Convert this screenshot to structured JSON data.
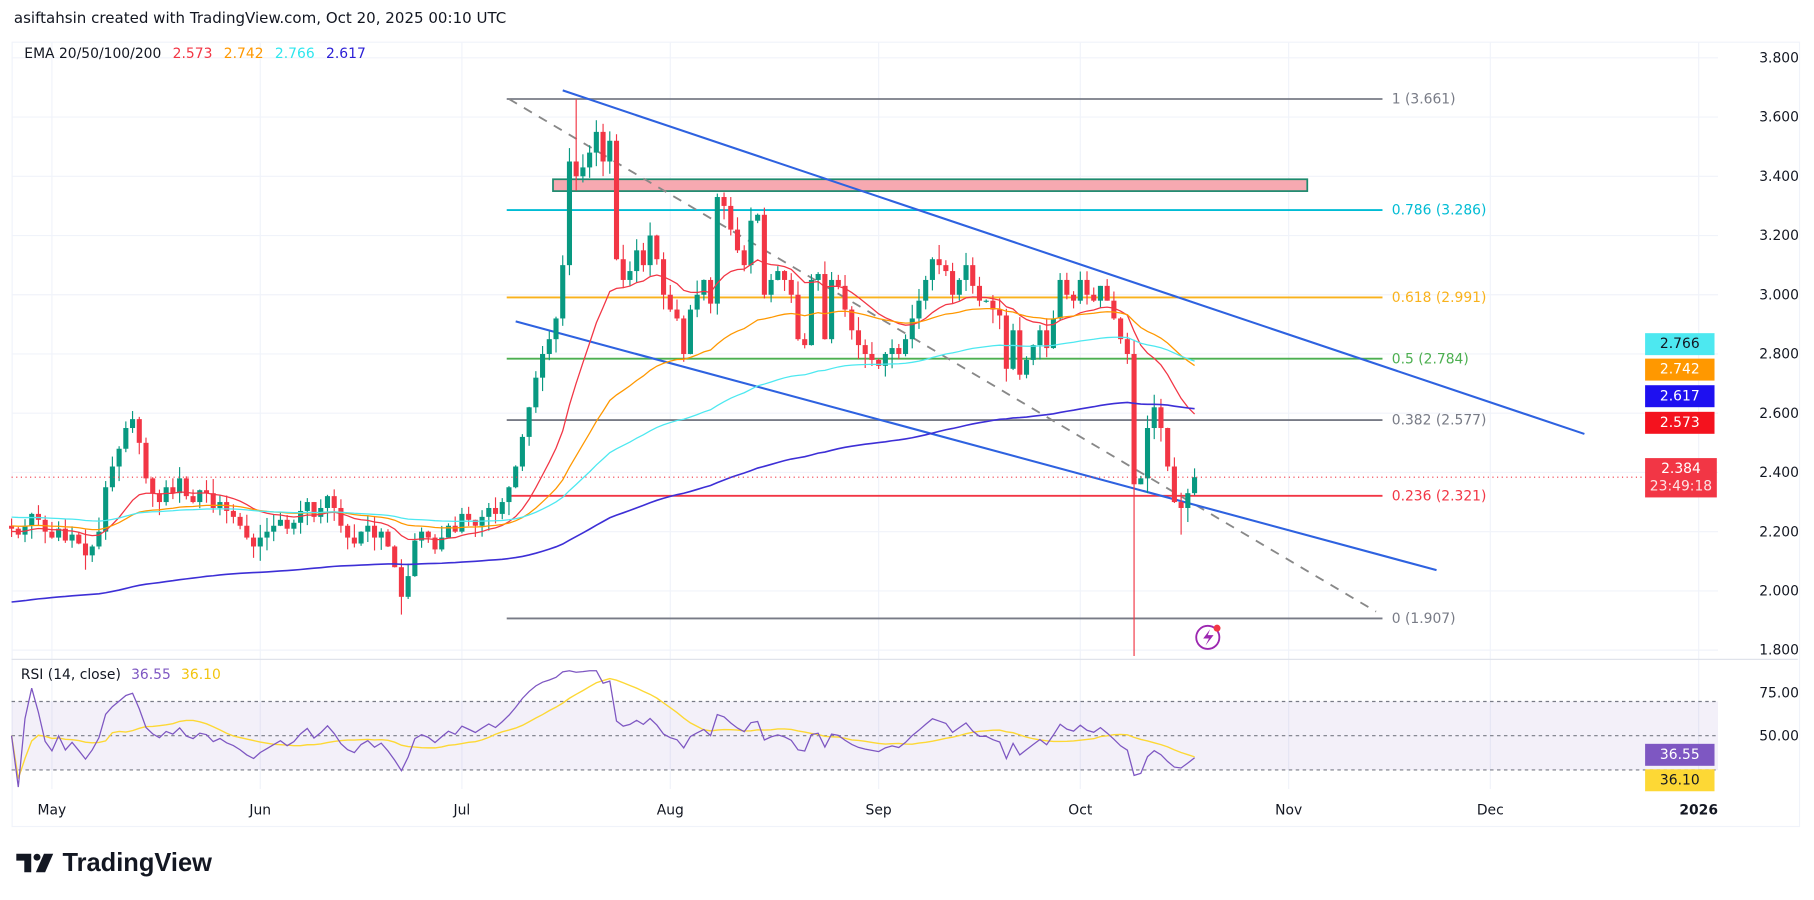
{
  "header": {
    "attribution": "asiftahsin created with TradingView.com, Oct 20, 2025 00:10 UTC"
  },
  "legend": {
    "name": "EMA 20/50/100/200",
    "ema20": "2.573",
    "ema50": "2.742",
    "ema100": "2.766",
    "ema200": "2.617"
  },
  "rsi_legend": {
    "name": "RSI (14, close)",
    "rsi": "36.55",
    "rsi_ma": "36.10"
  },
  "price_tags": {
    "ema100": "2.766",
    "ema50": "2.742",
    "ema200": "2.617",
    "ema20": "2.573",
    "last": "2.384",
    "countdown": "23:49:18",
    "rsi": "36.55",
    "rsi_ma": "36.10"
  },
  "footer": {
    "brand": "TradingView"
  },
  "colors": {
    "up": "#089981",
    "down": "#f23645",
    "ema20": "#f23645",
    "ema50": "#ff9800",
    "ema100": "#4de8f0",
    "ema200": "#3d2fd6",
    "channel": "#2e62e0",
    "rsi": "#7e57c2",
    "rsi_ma": "#fdd835"
  },
  "chart_data": {
    "type": "candlestick",
    "title": "EMA 20/50/100/200",
    "price_axis": {
      "min": 1.8,
      "max": 3.8,
      "ticks": [
        "3.800",
        "3.600",
        "3.400",
        "3.200",
        "3.000",
        "2.800",
        "2.600",
        "2.400",
        "2.200",
        "2.000",
        "1.800"
      ]
    },
    "time_axis": {
      "ticks": [
        "May",
        "Jun",
        "Jul",
        "Aug",
        "Sep",
        "Oct",
        "Nov",
        "Dec",
        "2026"
      ]
    },
    "start_date": "2025-04-25",
    "closes": [
      2.21,
      2.19,
      2.22,
      2.26,
      2.24,
      2.2,
      2.18,
      2.21,
      2.17,
      2.19,
      2.16,
      2.12,
      2.15,
      2.2,
      2.35,
      2.42,
      2.48,
      2.55,
      2.58,
      2.5,
      2.38,
      2.33,
      2.3,
      2.35,
      2.33,
      2.38,
      2.32,
      2.3,
      2.34,
      2.33,
      2.28,
      2.3,
      2.27,
      2.25,
      2.22,
      2.18,
      2.15,
      2.18,
      2.2,
      2.22,
      2.24,
      2.21,
      2.23,
      2.27,
      2.3,
      2.25,
      2.28,
      2.32,
      2.28,
      2.22,
      2.18,
      2.16,
      2.2,
      2.22,
      2.18,
      2.2,
      2.15,
      2.08,
      1.98,
      2.05,
      2.17,
      2.2,
      2.18,
      2.14,
      2.18,
      2.22,
      2.2,
      2.26,
      2.24,
      2.22,
      2.25,
      2.28,
      2.26,
      2.3,
      2.35,
      2.42,
      2.52,
      2.62,
      2.72,
      2.8,
      2.85,
      2.92,
      3.1,
      3.45,
      3.4,
      3.43,
      3.48,
      3.55,
      3.45,
      3.52,
      3.12,
      3.05,
      3.08,
      3.15,
      3.1,
      3.2,
      3.12,
      3.0,
      2.95,
      2.92,
      2.8,
      2.95,
      3.0,
      3.05,
      2.97,
      3.33,
      3.3,
      3.22,
      3.15,
      3.1,
      3.25,
      3.27,
      3.0,
      3.05,
      3.08,
      3.05,
      3.0,
      2.85,
      2.83,
      3.05,
      3.07,
      2.85,
      3.05,
      3.03,
      2.95,
      2.88,
      2.83,
      2.8,
      2.78,
      2.76,
      2.8,
      2.82,
      2.8,
      2.85,
      2.92,
      2.98,
      3.05,
      3.12,
      3.1,
      3.08,
      3.0,
      3.05,
      3.1,
      3.03,
      2.98,
      2.98,
      2.95,
      2.93,
      2.75,
      2.88,
      2.73,
      2.78,
      2.83,
      2.88,
      2.82,
      2.92,
      3.05,
      3.0,
      2.98,
      3.05,
      3.0,
      2.98,
      3.03,
      2.98,
      2.92,
      2.85,
      2.8,
      2.36,
      2.38,
      2.55,
      2.62,
      2.55,
      2.42,
      2.3,
      2.28,
      2.33,
      2.384
    ],
    "wick_overrides": [
      {
        "index": 84,
        "high": 3.66
      },
      {
        "index": 58,
        "low": 1.92
      },
      {
        "index": 167,
        "low": 1.78
      },
      {
        "index": 174,
        "low": 2.19
      }
    ],
    "ema_seed": {
      "ema20": 2.2,
      "ema50": 2.22,
      "ema100": 2.25,
      "ema200": 1.96
    },
    "last_price": 2.384,
    "fib_levels": [
      {
        "ratio": "1",
        "price": 3.661,
        "label": "1 (3.661)",
        "color": "#787b86"
      },
      {
        "ratio": "0.786",
        "price": 3.286,
        "label": "0.786 (3.286)",
        "color": "#00bcd4"
      },
      {
        "ratio": "0.618",
        "price": 2.991,
        "label": "0.618 (2.991)",
        "color": "#f9b21c"
      },
      {
        "ratio": "0.5",
        "price": 2.784,
        "label": "0.5 (2.784)",
        "color": "#4caf50"
      },
      {
        "ratio": "0.382",
        "price": 2.577,
        "label": "0.382 (2.577)",
        "color": "#787b86"
      },
      {
        "ratio": "0.236",
        "price": 2.321,
        "label": "0.236 (2.321)",
        "color": "#f23645"
      },
      {
        "ratio": "0",
        "price": 1.907,
        "label": "0 (1.907)",
        "color": "#787b86"
      }
    ],
    "resistance_zone": {
      "low": 3.35,
      "high": 3.39
    },
    "channel": {
      "upper": [
        {
          "day": 82,
          "price": 3.69
        },
        {
          "day": 234,
          "price": 2.53
        }
      ],
      "lower": [
        {
          "day": 75,
          "price": 2.91
        },
        {
          "day": 212,
          "price": 2.07
        }
      ]
    },
    "fib_trend": [
      {
        "day": 74,
        "price": 3.661
      },
      {
        "day": 203,
        "price": 1.93
      }
    ],
    "rsi": {
      "period": 14,
      "ma_period": 14,
      "levels": [
        "75.00",
        "50.00"
      ],
      "upper_band": 70,
      "middle": 50,
      "lower_band": 30
    }
  }
}
